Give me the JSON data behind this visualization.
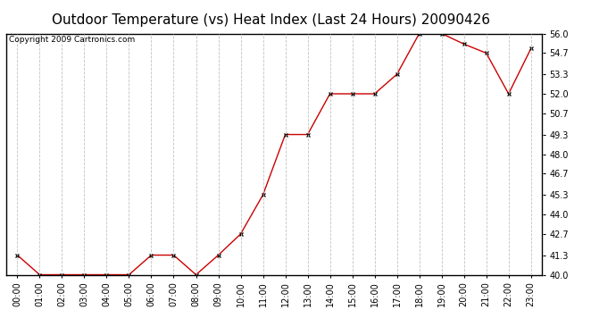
{
  "title": "Outdoor Temperature (vs) Heat Index (Last 24 Hours) 20090426",
  "copyright": "Copyright 2009 Cartronics.com",
  "x_labels": [
    "00:00",
    "01:00",
    "02:00",
    "03:00",
    "04:00",
    "05:00",
    "06:00",
    "07:00",
    "08:00",
    "09:00",
    "10:00",
    "11:00",
    "12:00",
    "13:00",
    "14:00",
    "15:00",
    "16:00",
    "17:00",
    "18:00",
    "19:00",
    "20:00",
    "21:00",
    "22:00",
    "23:00"
  ],
  "y_values": [
    41.3,
    40.0,
    40.0,
    40.0,
    40.0,
    40.0,
    41.3,
    41.3,
    40.0,
    41.3,
    42.7,
    45.3,
    49.3,
    49.3,
    52.0,
    52.0,
    52.0,
    53.3,
    56.0,
    56.0,
    55.3,
    54.7,
    52.0,
    55.0
  ],
  "line_color": "#CC0000",
  "marker": "x",
  "marker_color": "#000000",
  "marker_size": 3,
  "background_color": "#ffffff",
  "plot_bg_color": "#ffffff",
  "grid_color": "#bbbbbb",
  "ylim": [
    40.0,
    56.0
  ],
  "yticks": [
    40.0,
    41.3,
    42.7,
    44.0,
    45.3,
    46.7,
    48.0,
    49.3,
    50.7,
    52.0,
    53.3,
    54.7,
    56.0
  ],
  "title_fontsize": 11,
  "tick_fontsize": 7,
  "copyright_fontsize": 6.5
}
